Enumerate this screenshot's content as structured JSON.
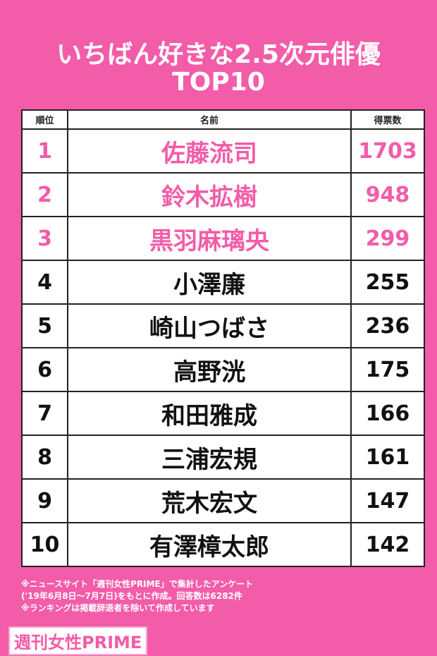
{
  "title": [
    "いちばん好きな2.5次元俳優",
    "TOP10"
  ],
  "table": {
    "header": [
      "順位",
      "名前",
      "得票数"
    ],
    "rows": [
      [
        1,
        "佐藤流司",
        1703
      ],
      [
        2,
        "鈴木拡樹",
        948
      ],
      [
        3,
        "黒羽麻璃央",
        299
      ],
      [
        4,
        "小澤廉",
        255
      ],
      [
        5,
        "崎山つばさ",
        236
      ],
      [
        6,
        "高野洸",
        175
      ],
      [
        7,
        "和田雅成",
        166
      ],
      [
        8,
        "三浦宏規",
        161
      ],
      [
        9,
        "荒木宏文",
        147
      ],
      [
        10,
        "有澤樟太郎",
        142
      ]
    ]
  },
  "notes": [
    "※ニュースサイト「週刊女性PRIME」で集計したアンケート",
    "('19年6月8日〜7月7日)をもとに作成。回答数は6282件",
    "※ランキングは掲載辞退者を除いて作成しています"
  ],
  "logo": "週刊女性PRIME"
}
